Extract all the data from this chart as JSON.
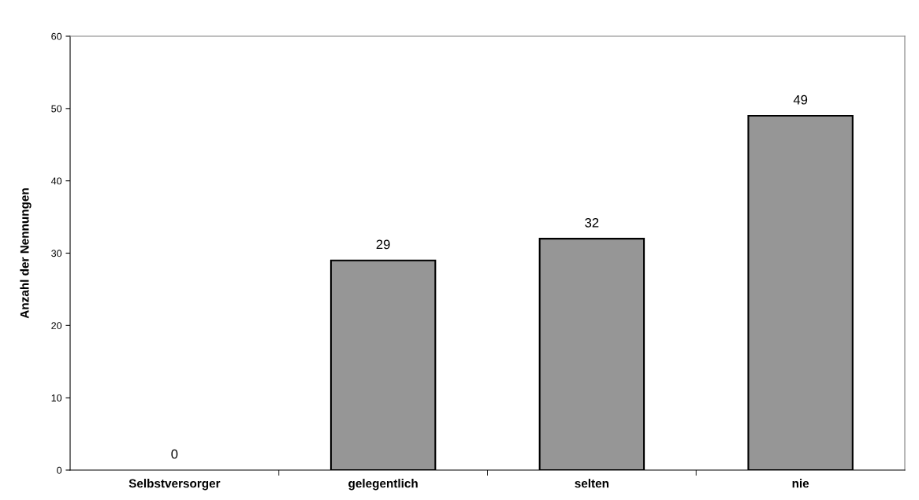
{
  "chart_data": {
    "type": "bar",
    "ylabel": "Anzahl der Nennungen",
    "categories": [
      "Selbstversorger",
      "gelegentlich",
      "selten",
      "nie"
    ],
    "values": [
      0,
      29,
      32,
      49
    ],
    "color": "#969696",
    "ylim": [
      0,
      60
    ],
    "yticks": [
      0,
      10,
      20,
      30,
      40,
      50,
      60
    ],
    "grid": false,
    "data_labels": true
  }
}
